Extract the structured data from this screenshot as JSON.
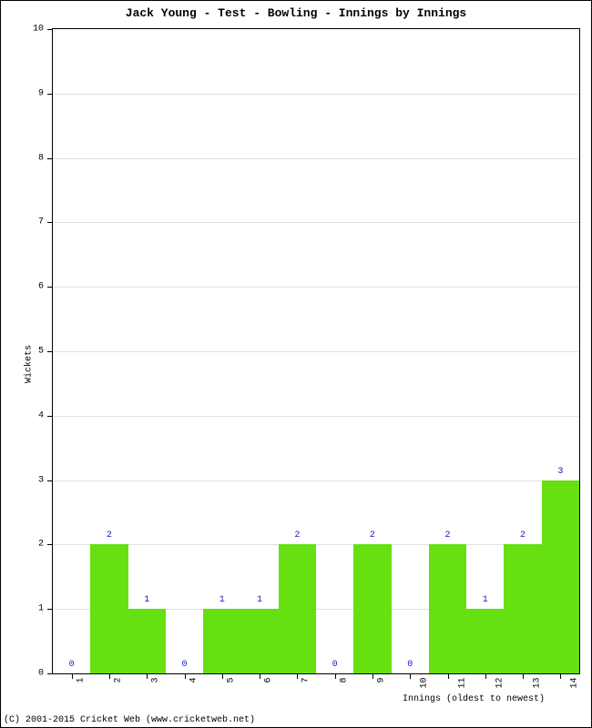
{
  "title": "Jack Young - Test - Bowling - Innings by Innings",
  "xlabel": "Innings (oldest to newest)",
  "ylabel": "Wickets",
  "credit": "(C) 2001-2015 Cricket Web (www.cricketweb.net)",
  "chart": {
    "type": "bar",
    "background_color": "#ffffff",
    "grid_color": "#e0e0e0",
    "bar_color": "#66e010",
    "value_label_color": "#1020c0",
    "axis_color": "#000000",
    "title_fontsize": 13,
    "label_fontsize": 10,
    "tick_fontsize": 10,
    "value_fontsize": 10,
    "ylim": [
      0,
      10
    ],
    "ytick_step": 1,
    "bar_width": 1.0,
    "categories": [
      "1",
      "2",
      "3",
      "4",
      "5",
      "6",
      "7",
      "8",
      "9",
      "10",
      "11",
      "12",
      "13",
      "14"
    ],
    "values": [
      0,
      2,
      1,
      0,
      1,
      1,
      2,
      0,
      2,
      0,
      2,
      1,
      2,
      3
    ]
  }
}
